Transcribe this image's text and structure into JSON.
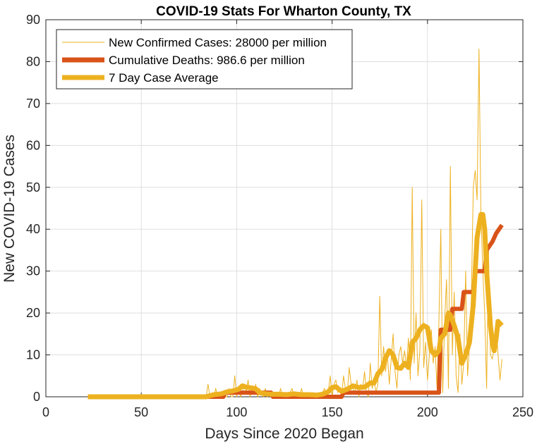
{
  "chart_data": {
    "type": "line",
    "title": "COVID-19 Stats For Wharton County, TX",
    "xlabel": "Days Since 2020 Began",
    "ylabel": "New COVID-19 Cases",
    "xlim": [
      0,
      250
    ],
    "ylim": [
      0,
      90
    ],
    "xticks": [
      0,
      50,
      100,
      150,
      200,
      250
    ],
    "yticks": [
      0,
      10,
      20,
      30,
      40,
      50,
      60,
      70,
      80,
      90
    ],
    "grid": true,
    "legend_position": "top-left",
    "series": [
      {
        "name": "New Confirmed Cases: 28000 per million",
        "color": "#EDB120",
        "style": "thin",
        "points": [
          [
            22,
            0
          ],
          [
            84,
            0
          ],
          [
            85,
            3
          ],
          [
            86,
            0
          ],
          [
            88,
            0
          ],
          [
            89,
            2
          ],
          [
            90,
            0
          ],
          [
            92,
            1
          ],
          [
            93,
            0
          ],
          [
            95,
            0
          ],
          [
            96,
            2
          ],
          [
            97,
            0
          ],
          [
            98,
            0
          ],
          [
            99,
            5
          ],
          [
            100,
            0
          ],
          [
            101,
            2
          ],
          [
            102,
            0
          ],
          [
            103,
            1
          ],
          [
            104,
            3
          ],
          [
            105,
            1
          ],
          [
            106,
            4
          ],
          [
            107,
            0
          ],
          [
            108,
            2
          ],
          [
            109,
            1
          ],
          [
            110,
            3
          ],
          [
            111,
            0
          ],
          [
            112,
            2
          ],
          [
            113,
            1
          ],
          [
            114,
            0
          ],
          [
            115,
            2
          ],
          [
            116,
            0
          ],
          [
            118,
            1
          ],
          [
            120,
            0
          ],
          [
            122,
            0
          ],
          [
            123,
            2
          ],
          [
            124,
            0
          ],
          [
            126,
            1
          ],
          [
            127,
            0
          ],
          [
            129,
            2
          ],
          [
            130,
            0
          ],
          [
            132,
            1
          ],
          [
            133,
            0
          ],
          [
            134,
            2
          ],
          [
            135,
            0
          ],
          [
            137,
            1
          ],
          [
            138,
            0
          ],
          [
            140,
            1
          ],
          [
            141,
            0
          ],
          [
            143,
            1
          ],
          [
            144,
            0
          ],
          [
            146,
            2
          ],
          [
            147,
            0
          ],
          [
            148,
            1
          ],
          [
            149,
            5
          ],
          [
            150,
            0
          ],
          [
            151,
            3
          ],
          [
            152,
            4
          ],
          [
            153,
            1
          ],
          [
            154,
            2
          ],
          [
            155,
            0
          ],
          [
            156,
            5
          ],
          [
            157,
            2
          ],
          [
            158,
            1
          ],
          [
            159,
            7
          ],
          [
            160,
            3
          ],
          [
            161,
            2
          ],
          [
            162,
            1
          ],
          [
            163,
            4
          ],
          [
            164,
            0
          ],
          [
            165,
            3
          ],
          [
            166,
            2
          ],
          [
            167,
            6
          ],
          [
            168,
            1
          ],
          [
            169,
            0
          ],
          [
            170,
            8
          ],
          [
            171,
            2
          ],
          [
            172,
            4
          ],
          [
            173,
            1
          ],
          [
            174,
            3
          ],
          [
            175,
            24
          ],
          [
            176,
            5
          ],
          [
            177,
            12
          ],
          [
            178,
            6
          ],
          [
            179,
            10
          ],
          [
            180,
            3
          ],
          [
            181,
            9
          ],
          [
            182,
            15
          ],
          [
            183,
            6
          ],
          [
            184,
            2
          ],
          [
            185,
            10
          ],
          [
            186,
            12
          ],
          [
            187,
            8
          ],
          [
            188,
            11
          ],
          [
            189,
            7
          ],
          [
            190,
            14
          ],
          [
            191,
            4
          ],
          [
            192,
            50
          ],
          [
            193,
            8
          ],
          [
            194,
            20
          ],
          [
            195,
            5
          ],
          [
            196,
            11
          ],
          [
            197,
            47
          ],
          [
            198,
            7
          ],
          [
            199,
            13
          ],
          [
            200,
            4
          ],
          [
            201,
            10
          ],
          [
            202,
            16
          ],
          [
            203,
            8
          ],
          [
            204,
            12
          ],
          [
            205,
            2
          ],
          [
            206,
            18
          ],
          [
            207,
            40
          ],
          [
            208,
            1
          ],
          [
            209,
            18
          ],
          [
            210,
            28
          ],
          [
            211,
            2
          ],
          [
            212,
            55
          ],
          [
            213,
            10
          ],
          [
            214,
            25
          ],
          [
            215,
            5
          ],
          [
            216,
            1
          ],
          [
            217,
            15
          ],
          [
            218,
            3
          ],
          [
            219,
            8
          ],
          [
            220,
            30
          ],
          [
            221,
            5
          ],
          [
            222,
            12
          ],
          [
            223,
            24
          ],
          [
            224,
            50
          ],
          [
            225,
            54
          ],
          [
            226,
            47
          ],
          [
            227,
            83
          ],
          [
            228,
            44
          ],
          [
            229,
            30
          ],
          [
            230,
            20
          ],
          [
            231,
            2
          ],
          [
            232,
            35
          ],
          [
            233,
            10
          ],
          [
            234,
            9
          ],
          [
            235,
            12
          ],
          [
            236,
            18
          ],
          [
            237,
            10
          ],
          [
            238,
            4
          ],
          [
            239,
            9
          ]
        ]
      },
      {
        "name": "Cumulative Deaths: 986.6 per million",
        "color": "#D95319",
        "style": "thick",
        "points": [
          [
            22,
            0
          ],
          [
            93,
            0
          ],
          [
            94,
            1
          ],
          [
            118,
            1
          ],
          [
            119,
            0
          ],
          [
            155,
            0
          ],
          [
            156,
            1
          ],
          [
            206,
            1
          ],
          [
            207,
            16
          ],
          [
            212,
            16
          ],
          [
            213,
            21
          ],
          [
            218,
            21
          ],
          [
            219,
            25
          ],
          [
            224,
            25
          ],
          [
            225,
            30
          ],
          [
            230,
            30
          ],
          [
            231,
            35
          ],
          [
            234,
            37
          ],
          [
            236,
            39
          ],
          [
            239,
            41
          ]
        ]
      },
      {
        "name": "7 Day Case Average",
        "color": "#EDB120",
        "style": "very-thick",
        "points": [
          [
            22,
            0
          ],
          [
            84,
            0
          ],
          [
            88,
            0.5
          ],
          [
            92,
            0.7
          ],
          [
            95,
            1.2
          ],
          [
            98,
            1.4
          ],
          [
            101,
            1.8
          ],
          [
            103,
            2.6
          ],
          [
            105,
            2.3
          ],
          [
            108,
            2.1
          ],
          [
            110,
            1.9
          ],
          [
            112,
            1.0
          ],
          [
            115,
            0.7
          ],
          [
            118,
            0.6
          ],
          [
            122,
            0.6
          ],
          [
            126,
            0.5
          ],
          [
            130,
            0.7
          ],
          [
            134,
            0.5
          ],
          [
            138,
            0.5
          ],
          [
            142,
            0.4
          ],
          [
            145,
            0.6
          ],
          [
            148,
            1.2
          ],
          [
            150,
            2.2
          ],
          [
            152,
            2.4
          ],
          [
            155,
            1.3
          ],
          [
            158,
            1.8
          ],
          [
            161,
            2.6
          ],
          [
            164,
            2.2
          ],
          [
            167,
            2.3
          ],
          [
            170,
            3.3
          ],
          [
            172,
            3.3
          ],
          [
            174,
            5.5
          ],
          [
            176,
            6.5
          ],
          [
            178,
            9.2
          ],
          [
            180,
            11
          ],
          [
            182,
            10
          ],
          [
            184,
            7
          ],
          [
            186,
            6.8
          ],
          [
            188,
            8
          ],
          [
            190,
            7
          ],
          [
            192,
            13
          ],
          [
            194,
            14
          ],
          [
            196,
            16
          ],
          [
            198,
            17
          ],
          [
            200,
            16.5
          ],
          [
            202,
            11
          ],
          [
            204,
            10
          ],
          [
            206,
            11
          ],
          [
            207,
            14
          ],
          [
            209,
            15
          ],
          [
            211,
            20
          ],
          [
            212,
            19.5
          ],
          [
            214,
            17
          ],
          [
            216,
            14
          ],
          [
            218,
            8
          ],
          [
            220,
            10
          ],
          [
            222,
            13
          ],
          [
            224,
            22
          ],
          [
            226,
            38
          ],
          [
            228,
            43.5
          ],
          [
            229,
            43.5
          ],
          [
            230,
            40
          ],
          [
            231,
            30
          ],
          [
            233,
            17
          ],
          [
            234,
            13
          ],
          [
            235,
            11
          ],
          [
            236,
            14
          ],
          [
            237,
            18
          ],
          [
            238,
            17.5
          ],
          [
            239,
            17
          ]
        ]
      }
    ]
  }
}
